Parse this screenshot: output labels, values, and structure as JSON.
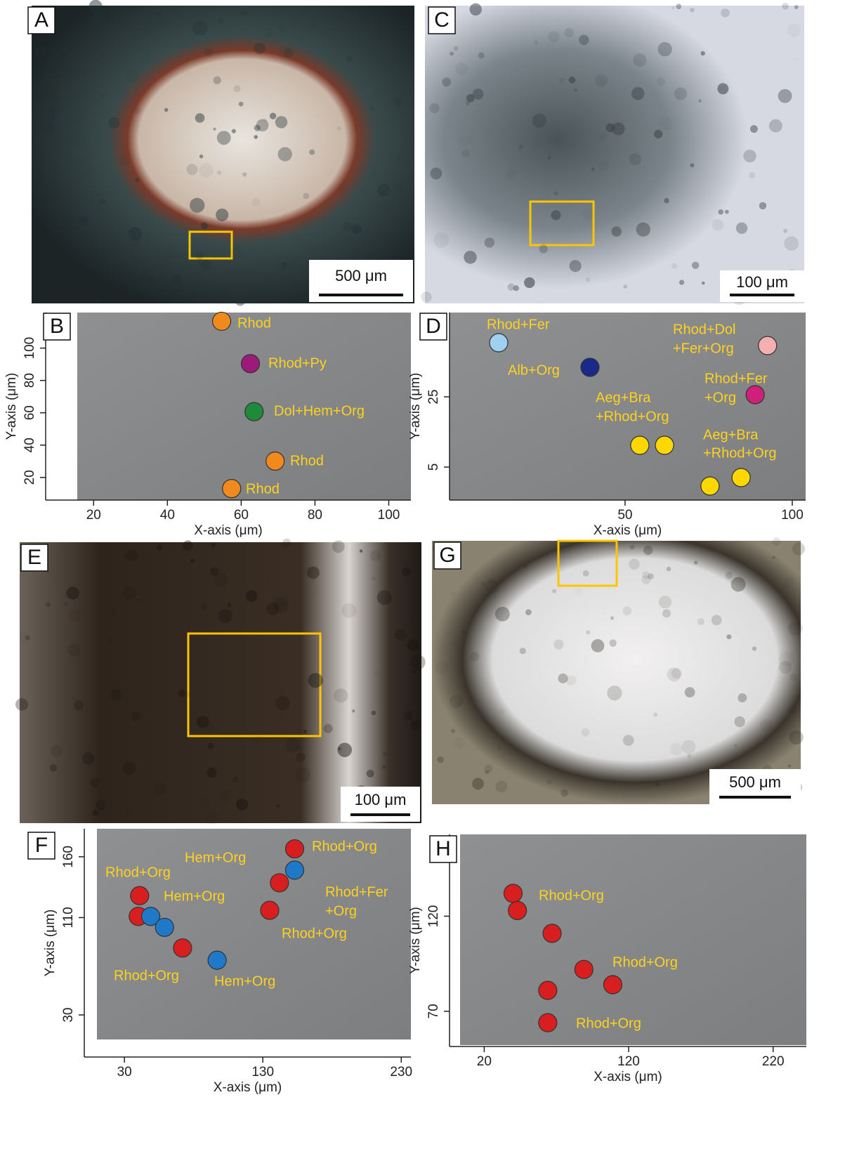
{
  "images": [
    {
      "label": "A",
      "scale_bar": "500 μm"
    },
    {
      "label": "C",
      "scale_bar": "100 μm"
    },
    {
      "label": "E",
      "scale_bar": "100 μm"
    },
    {
      "label": "G",
      "scale_bar": "500 μm"
    }
  ],
  "chart_data": [
    {
      "type": "scatter",
      "panel": "B",
      "xlabel": "X-axis (μm)",
      "ylabel": "Y-axis (μm)",
      "xlim": [
        7,
        106
      ],
      "ylim": [
        6,
        122
      ],
      "xticks": [
        20,
        40,
        60,
        80,
        100
      ],
      "yticks": [
        20,
        40,
        60,
        80,
        100
      ],
      "groups": [
        {
          "label": [
            "Rhod"
          ],
          "color": "#f08a1c",
          "x": [
            54.7
          ],
          "y": [
            116.6
          ]
        },
        {
          "label": [
            "Rhod+Py"
          ],
          "color": "#9b1a7a",
          "x": [
            62.5
          ],
          "y": [
            90.4
          ]
        },
        {
          "label": [
            "Dol+Hem+Org"
          ],
          "color": "#1e8a3a",
          "x": [
            63.5
          ],
          "y": [
            60.7
          ]
        },
        {
          "label": [
            "Rhod"
          ],
          "color": "#f08a1c",
          "x": [
            69.2
          ],
          "y": [
            30.1
          ]
        },
        {
          "label": [
            "Rhod"
          ],
          "color": "#f08a1c",
          "x": [
            57.4
          ],
          "y": [
            13.1
          ]
        }
      ]
    },
    {
      "type": "scatter",
      "panel": "D",
      "xlabel": "X-axis (μm)",
      "ylabel": "Y-axis (μm)",
      "xlim": [
        -2.5,
        104
      ],
      "ylim": [
        -4.4,
        49
      ],
      "xticks": [
        50,
        100
      ],
      "yticks": [
        5,
        25
      ],
      "groups": [
        {
          "label": [
            "Rhod+Fer"
          ],
          "color": "#9fd0f0",
          "x": [
            12.2
          ],
          "y": [
            40.4
          ]
        },
        {
          "label": [
            "Alb+Org"
          ],
          "color": "#1a2a8a",
          "x": [
            39.5
          ],
          "y": [
            33.4
          ]
        },
        {
          "label": [
            "Rhod+Dol",
            "+Fer+Org"
          ],
          "color": "#f4b0b0",
          "x": [
            92.6
          ],
          "y": [
            39.6
          ]
        },
        {
          "label": [
            "Rhod+Fer",
            "+Org"
          ],
          "color": "#d0207a",
          "x": [
            88.9
          ],
          "y": [
            25.6
          ]
        },
        {
          "label": [
            "Aeg+Bra",
            "+Rhod+Org"
          ],
          "color": "#ffd700",
          "x": [
            54.4,
            61.8
          ],
          "y": [
            11.2,
            11.2
          ]
        },
        {
          "label": [
            "Aeg+Bra",
            "+Rhod+Org"
          ],
          "color": "#ffd700",
          "x": [
            75.4,
            84.7
          ],
          "y": [
            -0.4,
            2
          ]
        }
      ]
    },
    {
      "type": "scatter",
      "panel": "F",
      "xlabel": "X-axis (μm)",
      "ylabel": "Y-axis (μm)",
      "xlim": [
        1,
        237
      ],
      "ylim": [
        -4.6,
        183
      ],
      "xticks": [
        30,
        130,
        230
      ],
      "yticks": [
        30,
        110,
        160
      ],
      "groups": [
        {
          "label": [
            "Rhod+Org"
          ],
          "color": "#d81e1e",
          "x": [
            153
          ],
          "y": [
            166.5
          ]
        },
        {
          "label": [
            "Hem+Org"
          ],
          "color": "#1f78c8",
          "x": [
            153
          ],
          "y": [
            149
          ]
        },
        {
          "label": [
            "Rhod+Fer",
            "+Org"
          ],
          "color": "#d81e1e",
          "x": [
            142
          ],
          "y": [
            138.6
          ]
        },
        {
          "label": [
            "Rhod+Org"
          ],
          "color": "#d81e1e",
          "x": [
            135
          ],
          "y": [
            116
          ]
        },
        {
          "label": [
            "Rhod+Org"
          ],
          "color": "#d81e1e",
          "x": [
            41,
            40
          ],
          "y": [
            128,
            111
          ]
        },
        {
          "label": [
            "Hem+Org"
          ],
          "color": "#1f78c8",
          "x": [
            49,
            59
          ],
          "y": [
            111,
            102
          ]
        },
        {
          "label": [
            "Rhod+Org"
          ],
          "color": "#d81e1e",
          "x": [
            72
          ],
          "y": [
            85
          ]
        },
        {
          "label": [
            "Hem+Org"
          ],
          "color": "#1f78c8",
          "x": [
            97
          ],
          "y": [
            75
          ]
        }
      ]
    },
    {
      "type": "scatter",
      "panel": "H",
      "xlabel": "X-axis (μm)",
      "ylabel": "Y-axis (μm)",
      "xlim": [
        -4,
        243
      ],
      "ylim": [
        51.5,
        163
      ],
      "xticks": [
        20,
        120,
        220
      ],
      "yticks": [
        70,
        120
      ],
      "groups": [
        {
          "label": [
            "Rhod+Org"
          ],
          "color": "#d81e1e",
          "x": [
            40,
            43
          ],
          "y": [
            132,
            123
          ]
        },
        {
          "label": [
            "Rhod+Org"
          ],
          "color": "#d81e1e",
          "x": [
            89,
            109
          ],
          "y": [
            92,
            84
          ]
        },
        {
          "label": [
            "Rhod+Org"
          ],
          "color": "#d81e1e",
          "x": [
            67,
            64,
            64
          ],
          "y": [
            111,
            81,
            64
          ]
        }
      ]
    }
  ]
}
